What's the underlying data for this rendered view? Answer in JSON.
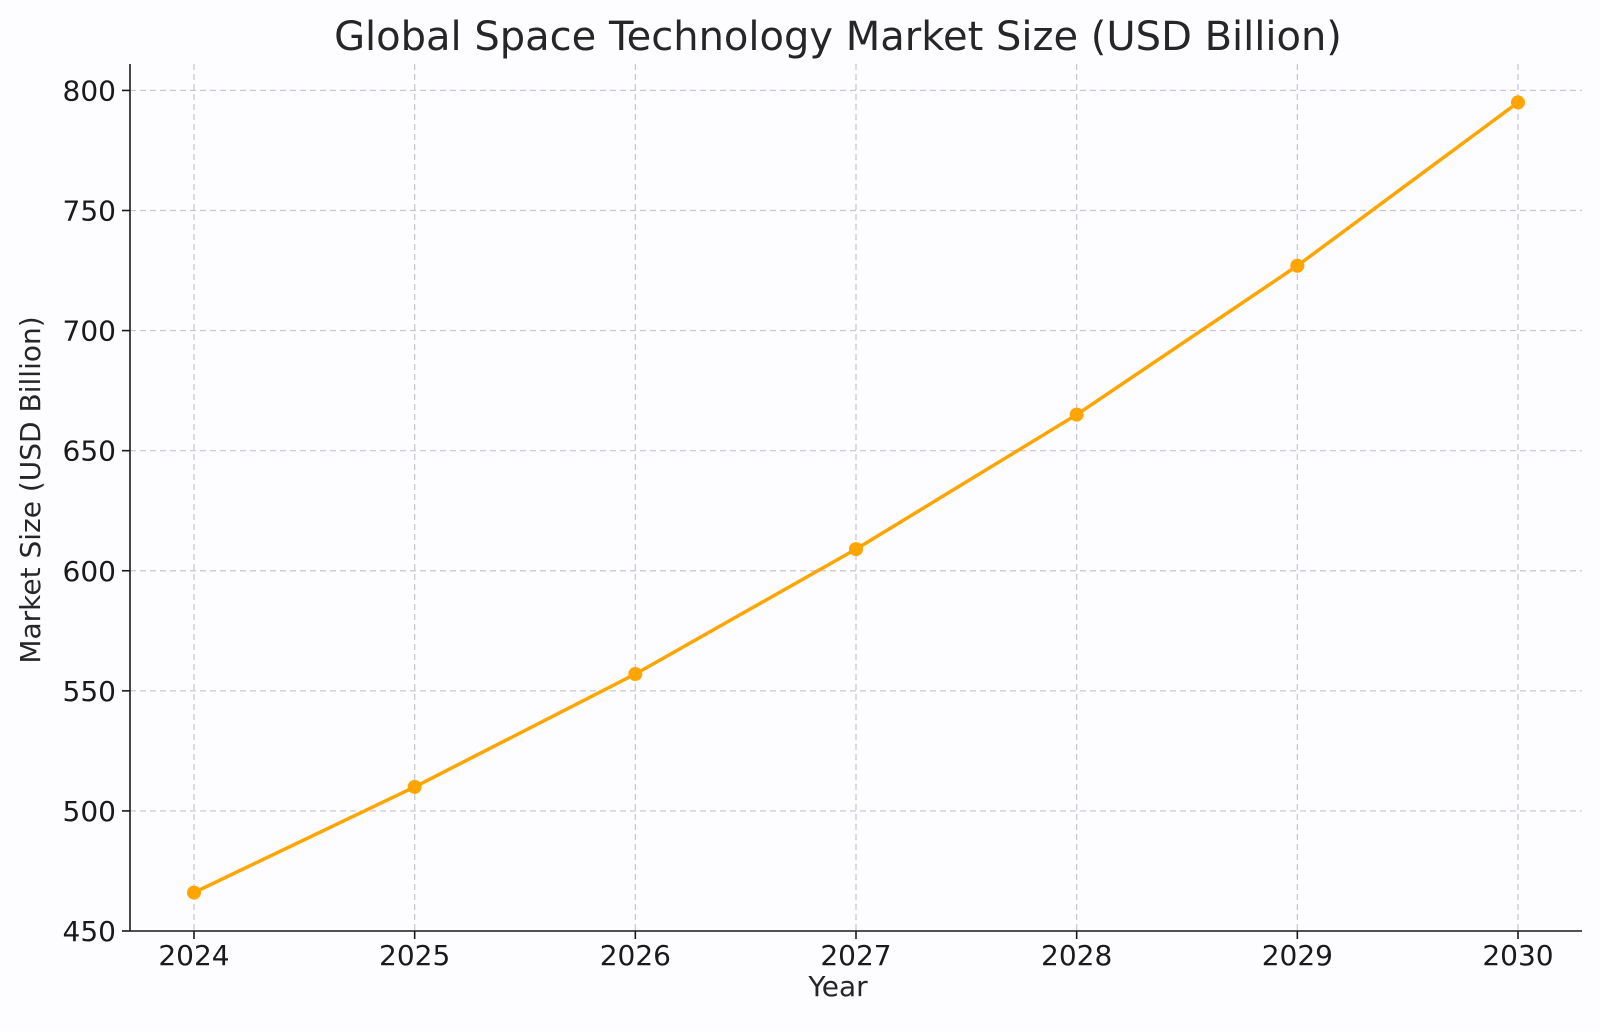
{
  "chart_data": {
    "type": "line",
    "title": "Global Space Technology Market Size (USD Billion)",
    "xlabel": "Year",
    "ylabel": "Market Size (USD Billion)",
    "x": [
      2024,
      2025,
      2026,
      2027,
      2028,
      2029,
      2030
    ],
    "xticks": [
      "2024",
      "2025",
      "2026",
      "2027",
      "2028",
      "2029",
      "2030"
    ],
    "yticks": [
      450,
      500,
      550,
      600,
      650,
      700,
      750,
      800
    ],
    "ylim": [
      450,
      811
    ],
    "grid": true,
    "series": [
      {
        "values": [
          466,
          510,
          557,
          609,
          665,
          727,
          795
        ],
        "color": "#FFA500",
        "marker": "circle"
      }
    ]
  }
}
